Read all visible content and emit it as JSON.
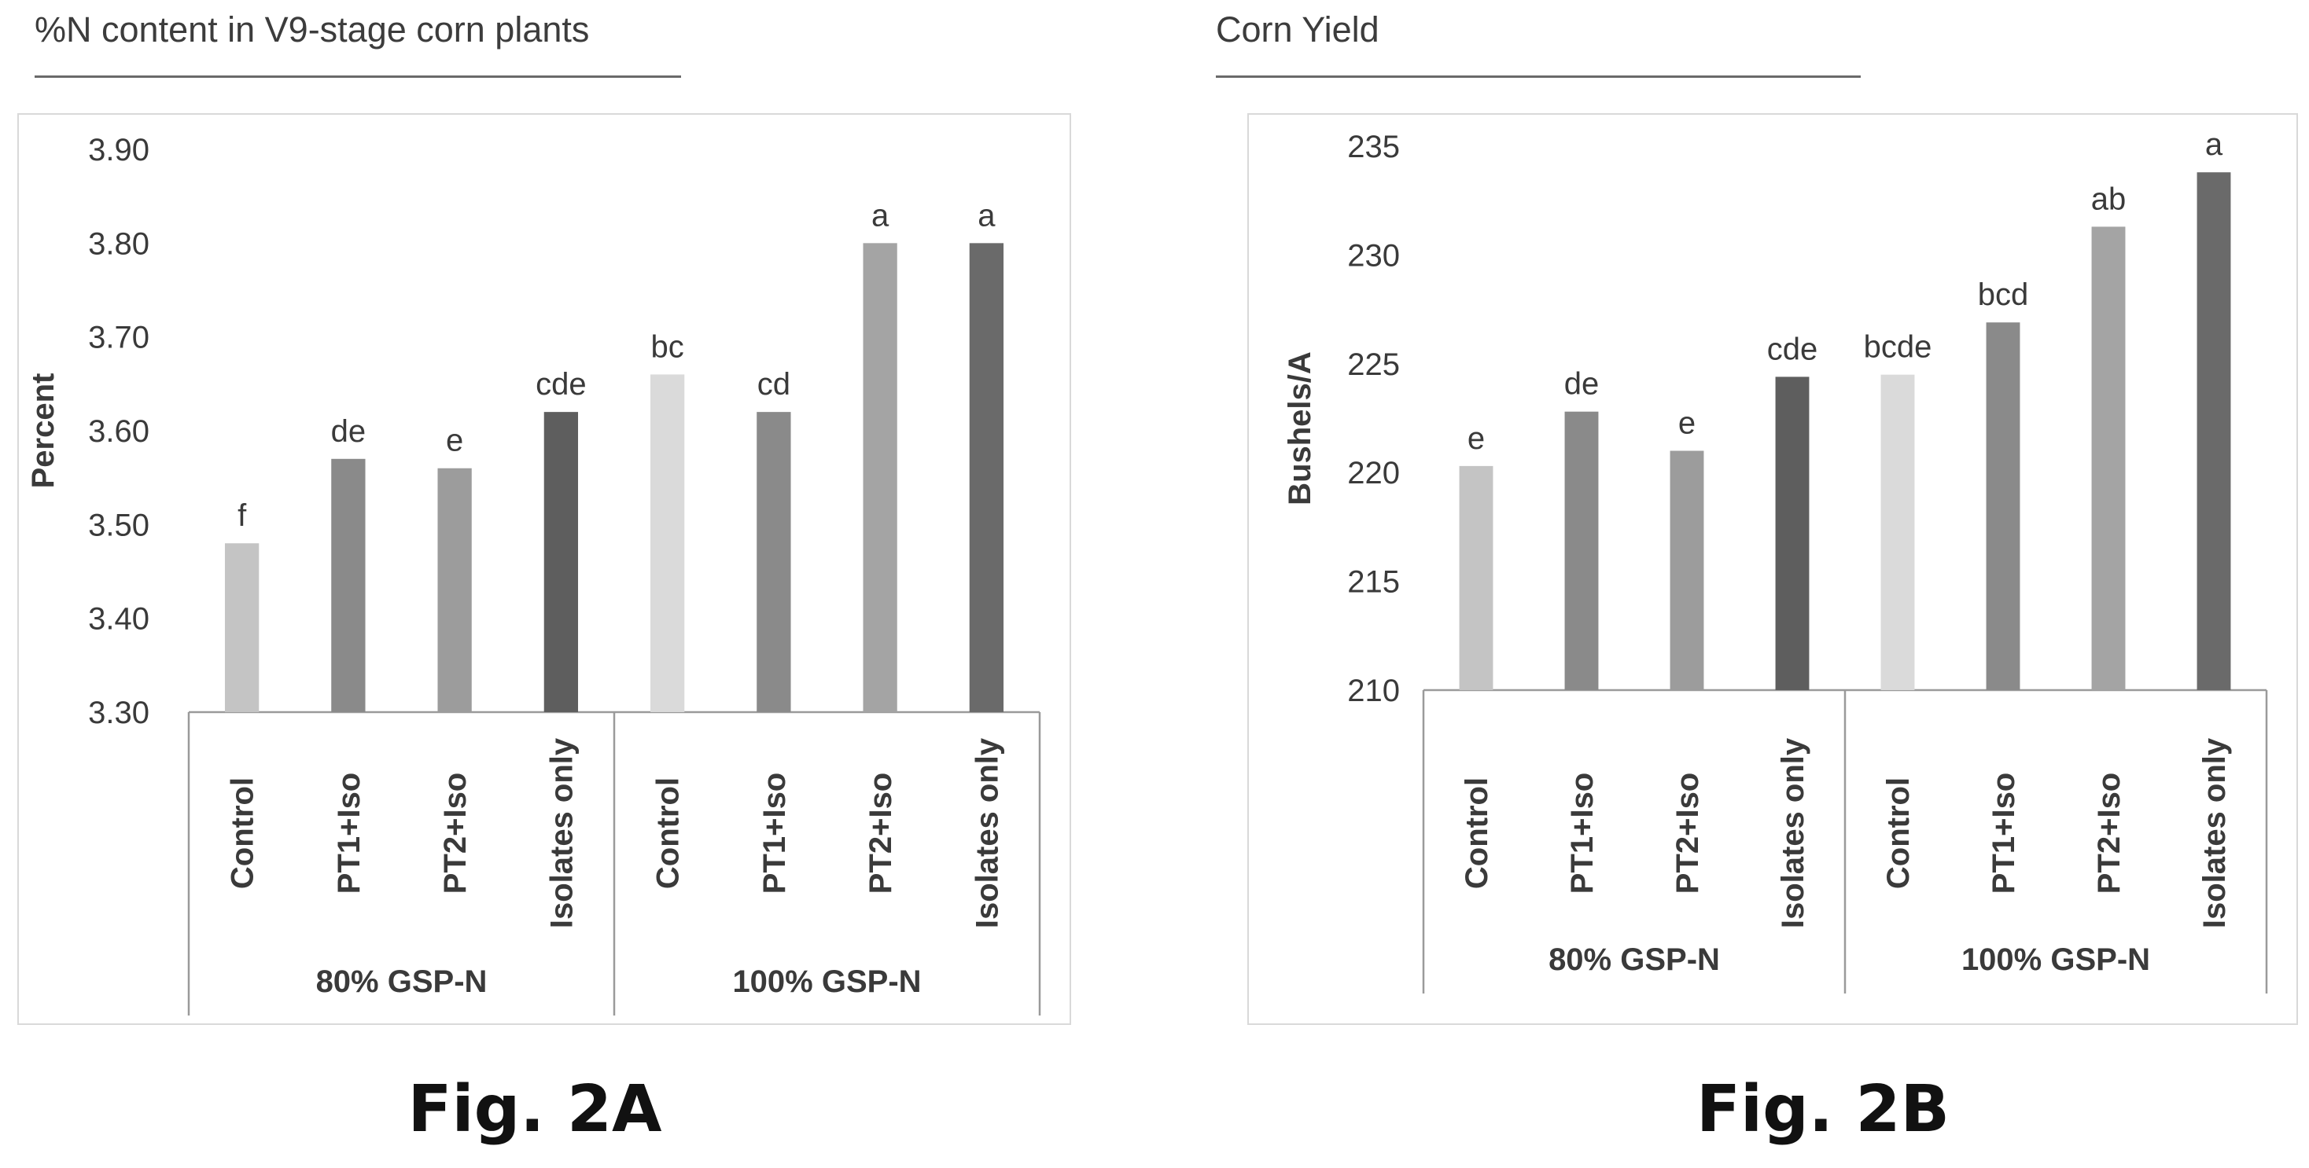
{
  "figures": {
    "a": {
      "title": "%N content in V9-stage corn plants",
      "fig_label": "Fig. 2A"
    },
    "b": {
      "title": "Corn Yield",
      "fig_label": "Fig. 2B"
    }
  },
  "chart_data": [
    {
      "type": "bar",
      "title": "%N content in V9-stage corn plants",
      "ylabel": "Percent",
      "xlabel": "",
      "ylim": [
        3.3,
        3.9
      ],
      "yticks": [
        "3.30",
        "3.40",
        "3.50",
        "3.60",
        "3.70",
        "3.80",
        "3.90"
      ],
      "groups": [
        "80% GSP-N",
        "100% GSP-N"
      ],
      "categories": [
        "Control",
        "PT1+Iso",
        "PT2+Iso",
        "Isolates only",
        "Control",
        "PT1+Iso",
        "PT2+Iso",
        "Isolates only"
      ],
      "values": [
        3.48,
        3.57,
        3.56,
        3.62,
        3.66,
        3.62,
        3.8,
        3.8
      ],
      "labels": [
        "f",
        "de",
        "e",
        "cde",
        "bc",
        "cd",
        "a",
        "a"
      ],
      "colors": [
        "#c4c4c4",
        "#8a8a8a",
        "#9c9c9c",
        "#5e5e5e",
        "#dadada",
        "#8a8a8a",
        "#a4a4a4",
        "#6a6a6a"
      ],
      "grid": false,
      "legend": "none"
    },
    {
      "type": "bar",
      "title": "Corn Yield",
      "ylabel": "Bushels/A",
      "xlabel": "",
      "ylim": [
        210,
        235
      ],
      "yticks": [
        "210",
        "215",
        "220",
        "225",
        "230",
        "235"
      ],
      "groups": [
        "80% GSP-N",
        "100% GSP-N"
      ],
      "categories": [
        "Control",
        "PT1+Iso",
        "PT2+Iso",
        "Isolates only",
        "Control",
        "PT1+Iso",
        "PT2+Iso",
        "Isolates only"
      ],
      "values": [
        220.3,
        222.8,
        221.0,
        224.4,
        224.5,
        226.9,
        231.3,
        233.8
      ],
      "labels": [
        "e",
        "de",
        "e",
        "cde",
        "bcde",
        "bcd",
        "ab",
        "a"
      ],
      "colors": [
        "#c4c4c4",
        "#8a8a8a",
        "#9c9c9c",
        "#5e5e5e",
        "#dadada",
        "#8a8a8a",
        "#a4a4a4",
        "#6a6a6a"
      ],
      "grid": false,
      "legend": "none"
    }
  ]
}
